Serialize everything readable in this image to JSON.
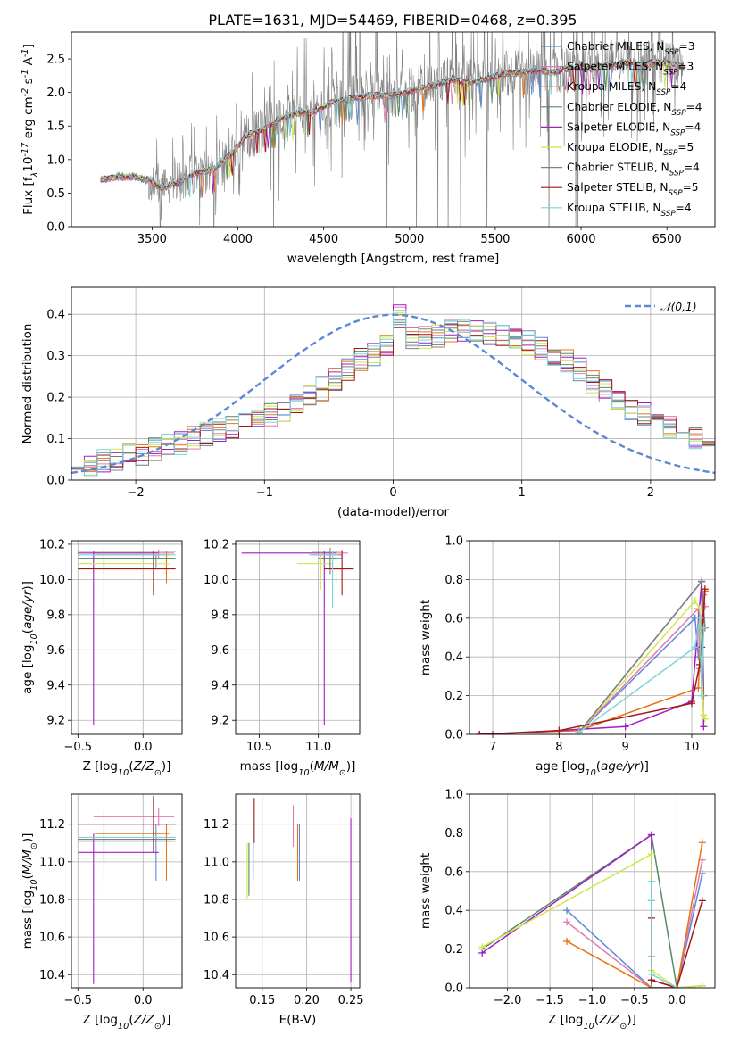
{
  "page": {
    "title": "PLATE=1631, MJD=54469, FIBERID=0468, z=0.395",
    "colors": {
      "Chabrier MILES": "#5b89d6",
      "Salpeter MILES": "#e07ab0",
      "Kroupa MILES": "#e67317",
      "Chabrier ELODIE": "#558a62",
      "Salpeter ELODIE": "#a21fbf",
      "Kroupa ELODIE": "#cfe84a",
      "Chabrier STELIB": "#808080",
      "Salpeter STELIB": "#a51616",
      "Kroupa STELIB": "#7dd3d8"
    }
  },
  "chart_data": [
    {
      "id": "spectrum",
      "type": "line",
      "title": "PLATE=1631, MJD=54469, FIBERID=0468, z=0.395",
      "xlabel": "wavelength [Angstrom, rest frame]",
      "ylabel": "Flux [f$_\\lambda$10$^{-17}$ erg cm$^{-2}$ s$^{-1}$ A$^{-1}$]",
      "xlim": [
        3030,
        6780
      ],
      "ylim": [
        0,
        2.9
      ],
      "xticks": [
        3500,
        4000,
        4500,
        5000,
        5500,
        6000,
        6500
      ],
      "yticks": [
        0.0,
        0.5,
        1.0,
        1.5,
        2.0,
        2.5
      ],
      "grid": false,
      "legend": "top-right",
      "data_range_x": [
        3200,
        6600
      ],
      "continuum_x": [
        3200,
        3300,
        3400,
        3500,
        3550,
        3650,
        3750,
        3850,
        3950,
        4050,
        4150,
        4250,
        4350,
        4450,
        4550,
        4650,
        4750,
        4850,
        4950,
        5050,
        5150,
        5250,
        5350,
        5450,
        5550,
        5650,
        5750,
        5850,
        5950,
        6050,
        6150,
        6250,
        6350,
        6450,
        6550,
        6600
      ],
      "continuum_y": [
        0.7,
        0.75,
        0.74,
        0.68,
        0.58,
        0.65,
        0.8,
        0.85,
        1.05,
        1.35,
        1.45,
        1.6,
        1.7,
        1.72,
        1.85,
        1.9,
        1.95,
        1.95,
        1.98,
        2.05,
        2.1,
        2.2,
        2.15,
        2.2,
        2.28,
        2.3,
        2.33,
        2.3,
        2.38,
        2.35,
        2.4,
        2.45,
        2.42,
        2.45,
        2.4,
        2.38
      ],
      "series": [
        {
          "name": "Chabrier MILES, N$_{SSP}$=3"
        },
        {
          "name": "Salpeter MILES, N$_{SSP}$=3"
        },
        {
          "name": "Kroupa MILES, N$_{SSP}$=4"
        },
        {
          "name": "Chabrier ELODIE, N$_{SSP}$=4"
        },
        {
          "name": "Salpeter ELODIE, N$_{SSP}$=4"
        },
        {
          "name": "Kroupa ELODIE, N$_{SSP}$=5"
        },
        {
          "name": "Chabrier STELIB, N$_{SSP}$=4"
        },
        {
          "name": "Salpeter STELIB, N$_{SSP}$=5"
        },
        {
          "name": "Kroupa STELIB, N$_{SSP}$=4"
        }
      ]
    },
    {
      "id": "residuals",
      "type": "step",
      "xlabel": "(data-model)/error",
      "ylabel": "Normed distribution",
      "xlim": [
        -2.5,
        2.5
      ],
      "ylim": [
        0,
        0.465
      ],
      "xticks": [
        -2,
        -1,
        0,
        1,
        2
      ],
      "yticks": [
        0.0,
        0.1,
        0.2,
        0.3,
        0.4
      ],
      "grid": true,
      "legend": "top-right",
      "gaussian_label": "$\\mathcal{N}(0,1)$",
      "bin_width": 0.1,
      "bin_start": -2.5,
      "base_hist": [
        0.03,
        0.035,
        0.045,
        0.05,
        0.06,
        0.065,
        0.075,
        0.085,
        0.09,
        0.1,
        0.11,
        0.12,
        0.13,
        0.14,
        0.15,
        0.16,
        0.17,
        0.18,
        0.2,
        0.22,
        0.245,
        0.265,
        0.29,
        0.3,
        0.32,
        0.335,
        0.34,
        0.345,
        0.35,
        0.36,
        0.365,
        0.365,
        0.355,
        0.345,
        0.335,
        0.33,
        0.32,
        0.305,
        0.29,
        0.265,
        0.24,
        0.215,
        0.195,
        0.17,
        0.16,
        0.145,
        0.13,
        0.12,
        0.1,
        0.09
      ]
    },
    {
      "id": "age-vs-Z",
      "type": "errorbar",
      "xlabel": "Z [log$_{10}$($Z/Z_\\odot$)]",
      "ylabel": "age  [log$_{10}$($age/yr$)]",
      "xlim": [
        -0.55,
        0.3
      ],
      "ylim": [
        9.12,
        10.22
      ],
      "xticks": [
        -0.5,
        0.0
      ],
      "yticks": [
        9.2,
        9.4,
        9.6,
        9.8,
        10.0,
        10.2
      ],
      "grid": true,
      "points": [
        {
          "model": "Chabrier MILES",
          "x": 0.1,
          "xerr": [
            0.58,
            0.1
          ],
          "y": 10.12,
          "yerr": [
            0.05,
            0.02
          ]
        },
        {
          "model": "Salpeter MILES",
          "x": 0.12,
          "xerr": [
            0.5,
            0.12
          ],
          "y": 10.15,
          "yerr": [
            0.03,
            0.02
          ]
        },
        {
          "model": "Kroupa MILES",
          "x": 0.18,
          "xerr": [
            0.55,
            0.02
          ],
          "y": 10.14,
          "yerr": [
            0.16,
            0.02
          ]
        },
        {
          "model": "Chabrier ELODIE",
          "x": -0.3,
          "xerr": [
            0.2,
            0.55
          ],
          "y": 10.12,
          "yerr": [
            0.05,
            0.02
          ]
        },
        {
          "model": "Salpeter ELODIE",
          "x": -0.38,
          "xerr": [
            0.12,
            0.5
          ],
          "y": 10.15,
          "yerr": [
            0.98,
            0.01
          ]
        },
        {
          "model": "Kroupa ELODIE",
          "x": -0.3,
          "xerr": [
            0.2,
            0.5
          ],
          "y": 10.09,
          "yerr": [
            0.15,
            0.06
          ]
        },
        {
          "model": "Chabrier STELIB",
          "x": -0.3,
          "xerr": [
            0.2,
            0.55
          ],
          "y": 10.16,
          "yerr": [
            0.13,
            0.02
          ]
        },
        {
          "model": "Salpeter STELIB",
          "x": 0.08,
          "xerr": [
            0.58,
            0.17
          ],
          "y": 10.06,
          "yerr": [
            0.15,
            0.1
          ]
        },
        {
          "model": "Kroupa STELIB",
          "x": -0.3,
          "xerr": [
            0.2,
            0.55
          ],
          "y": 10.14,
          "yerr": [
            0.3,
            0.02
          ]
        }
      ]
    },
    {
      "id": "age-vs-mass",
      "type": "errorbar",
      "xlabel": "mass [log$_{10}$($M/M_\\odot$)]",
      "ylabel": "",
      "xlim": [
        10.3,
        11.35
      ],
      "ylim": [
        9.12,
        10.22
      ],
      "xticks": [
        10.5,
        11.0
      ],
      "yticks": [
        9.2,
        9.4,
        9.6,
        9.8,
        10.0,
        10.2
      ],
      "grid": true,
      "points": [
        {
          "model": "Chabrier MILES",
          "x": 11.12,
          "xerr": [
            0.08,
            0.08
          ],
          "y": 10.12,
          "yerr": [
            0.05,
            0.02
          ]
        },
        {
          "model": "Salpeter MILES",
          "x": 11.2,
          "xerr": [
            0.05,
            0.05
          ],
          "y": 10.15,
          "yerr": [
            0.03,
            0.02
          ]
        },
        {
          "model": "Kroupa MILES",
          "x": 11.15,
          "xerr": [
            0.2,
            0.05
          ],
          "y": 10.14,
          "yerr": [
            0.16,
            0.02
          ]
        },
        {
          "model": "Chabrier ELODIE",
          "x": 11.1,
          "xerr": [
            0.1,
            0.05
          ],
          "y": 10.12,
          "yerr": [
            0.05,
            0.02
          ]
        },
        {
          "model": "Salpeter ELODIE",
          "x": 11.05,
          "xerr": [
            0.7,
            0.1
          ],
          "y": 10.15,
          "yerr": [
            0.98,
            0.01
          ]
        },
        {
          "model": "Kroupa ELODIE",
          "x": 11.02,
          "xerr": [
            0.2,
            0.1
          ],
          "y": 10.09,
          "yerr": [
            0.15,
            0.06
          ]
        },
        {
          "model": "Chabrier STELIB",
          "x": 11.1,
          "xerr": [
            0.15,
            0.1
          ],
          "y": 10.16,
          "yerr": [
            0.13,
            0.02
          ]
        },
        {
          "model": "Salpeter STELIB",
          "x": 11.2,
          "xerr": [
            0.15,
            0.1
          ],
          "y": 10.06,
          "yerr": [
            0.15,
            0.1
          ]
        },
        {
          "model": "Kroupa STELIB",
          "x": 11.12,
          "xerr": [
            0.2,
            0.05
          ],
          "y": 10.14,
          "yerr": [
            0.3,
            0.02
          ]
        }
      ]
    },
    {
      "id": "mass-weight-vs-age",
      "type": "line",
      "xlabel": "age  [log$_{10}$($age/yr$)]",
      "ylabel": "mass weight",
      "xlim": [
        6.65,
        10.35
      ],
      "ylim": [
        0,
        1.0
      ],
      "xticks": [
        7,
        8,
        9,
        10
      ],
      "yticks": [
        0.0,
        0.2,
        0.4,
        0.6,
        0.8,
        1.0
      ],
      "grid": true,
      "series": [
        {
          "model": "Chabrier MILES",
          "x": [
            8.3,
            10.05,
            10.1,
            10.15,
            10.18
          ],
          "y": [
            0.01,
            0.6,
            0.4,
            0.58,
            0.55
          ]
        },
        {
          "model": "Salpeter MILES",
          "x": [
            8.3,
            10.1,
            10.12,
            10.18,
            10.2
          ],
          "y": [
            0.01,
            0.65,
            0.34,
            0.72,
            0.66
          ]
        },
        {
          "model": "Kroupa MILES",
          "x": [
            6.8,
            8.3,
            10.1,
            10.15,
            10.2
          ],
          "y": [
            0.0,
            0.02,
            0.24,
            0.6,
            0.74
          ]
        },
        {
          "model": "Chabrier ELODIE",
          "x": [
            8.3,
            10.15,
            10.18
          ],
          "y": [
            0.01,
            0.79,
            0.2
          ]
        },
        {
          "model": "Salpeter ELODIE",
          "x": [
            7.0,
            9.0,
            10.0,
            10.15,
            10.18
          ],
          "y": [
            0.0,
            0.04,
            0.17,
            0.79,
            0.04
          ]
        },
        {
          "model": "Kroupa ELODIE",
          "x": [
            8.3,
            10.05,
            10.12,
            10.18,
            10.2
          ],
          "y": [
            0.01,
            0.69,
            0.65,
            0.1,
            0.08
          ]
        },
        {
          "model": "Chabrier STELIB",
          "x": [
            8.3,
            10.15,
            10.2
          ],
          "y": [
            0.01,
            0.79,
            0.55
          ]
        },
        {
          "model": "Salpeter STELIB",
          "x": [
            6.8,
            8.0,
            10.0,
            10.12,
            10.15,
            10.2
          ],
          "y": [
            0.0,
            0.02,
            0.16,
            0.36,
            0.45,
            0.75
          ]
        },
        {
          "model": "Kroupa STELIB",
          "x": [
            8.3,
            10.05,
            10.12,
            10.15,
            10.18
          ],
          "y": [
            0.01,
            0.45,
            0.6,
            0.2,
            0.55
          ]
        }
      ]
    },
    {
      "id": "mass-vs-Z",
      "type": "errorbar",
      "xlabel": "Z [log$_{10}$($Z/Z_\\odot$)]",
      "ylabel": "mass [log$_{10}$($M/M_\\odot$)]",
      "xlim": [
        -0.55,
        0.3
      ],
      "ylim": [
        10.33,
        11.36
      ],
      "xticks": [
        -0.5,
        0.0
      ],
      "yticks": [
        10.4,
        10.6,
        10.8,
        11.0,
        11.2
      ],
      "grid": true,
      "points": [
        {
          "model": "Chabrier MILES",
          "x": 0.1,
          "xerr": [
            0.58,
            0.1
          ],
          "y": 11.12,
          "yerr": [
            0.22,
            0.08
          ]
        },
        {
          "model": "Salpeter MILES",
          "x": 0.12,
          "xerr": [
            0.5,
            0.12
          ],
          "y": 11.24,
          "yerr": [
            0.05,
            0.05
          ]
        },
        {
          "model": "Kroupa MILES",
          "x": 0.18,
          "xerr": [
            0.55,
            0.02
          ],
          "y": 11.15,
          "yerr": [
            0.25,
            0.05
          ]
        },
        {
          "model": "Chabrier ELODIE",
          "x": -0.3,
          "xerr": [
            0.2,
            0.55
          ],
          "y": 11.11,
          "yerr": [
            0.1,
            0.05
          ]
        },
        {
          "model": "Salpeter ELODIE",
          "x": -0.38,
          "xerr": [
            0.12,
            0.5
          ],
          "y": 11.05,
          "yerr": [
            0.7,
            0.1
          ]
        },
        {
          "model": "Kroupa ELODIE",
          "x": -0.3,
          "xerr": [
            0.2,
            0.5
          ],
          "y": 11.02,
          "yerr": [
            0.2,
            0.1
          ]
        },
        {
          "model": "Chabrier STELIB",
          "x": -0.3,
          "xerr": [
            0.2,
            0.55
          ],
          "y": 11.12,
          "yerr": [
            0.12,
            0.15
          ]
        },
        {
          "model": "Salpeter STELIB",
          "x": 0.08,
          "xerr": [
            0.58,
            0.17
          ],
          "y": 11.2,
          "yerr": [
            0.15,
            0.15
          ]
        },
        {
          "model": "Kroupa STELIB",
          "x": -0.3,
          "xerr": [
            0.2,
            0.55
          ],
          "y": 11.13,
          "yerr": [
            0.2,
            0.07
          ]
        }
      ]
    },
    {
      "id": "mass-vs-EBV",
      "type": "errorbar",
      "xlabel": "E(B-V)",
      "ylabel": "",
      "xlim": [
        0.12,
        0.26
      ],
      "ylim": [
        10.33,
        11.36
      ],
      "xticks": [
        0.15,
        0.2,
        0.25
      ],
      "yticks": [
        10.4,
        10.6,
        10.8,
        11.0,
        11.2
      ],
      "grid": true,
      "points": [
        {
          "model": "Chabrier MILES",
          "x": 0.192,
          "y": 11.05,
          "yerr": [
            0.15,
            0.15
          ]
        },
        {
          "model": "Salpeter MILES",
          "x": 0.185,
          "y": 11.18,
          "yerr": [
            0.1,
            0.12
          ]
        },
        {
          "model": "Kroupa MILES",
          "x": 0.19,
          "y": 11.05,
          "yerr": [
            0.15,
            0.15
          ]
        },
        {
          "model": "Chabrier ELODIE",
          "x": 0.135,
          "y": 11.0,
          "yerr": [
            0.18,
            0.1
          ]
        },
        {
          "model": "Salpeter ELODIE",
          "x": 0.25,
          "y": 10.8,
          "yerr": [
            0.44,
            0.43
          ]
        },
        {
          "model": "Kroupa ELODIE",
          "x": 0.133,
          "y": 10.95,
          "yerr": [
            0.15,
            0.15
          ]
        },
        {
          "model": "Chabrier STELIB",
          "x": 0.14,
          "y": 11.1,
          "yerr": [
            0.15,
            0.15
          ]
        },
        {
          "model": "Salpeter STELIB",
          "x": 0.141,
          "y": 11.2,
          "yerr": [
            0.1,
            0.14
          ]
        },
        {
          "model": "Kroupa STELIB",
          "x": 0.14,
          "y": 11.05,
          "yerr": [
            0.15,
            0.2
          ]
        }
      ]
    },
    {
      "id": "mass-weight-vs-Z",
      "type": "line",
      "xlabel": "Z [log$_{10}$($Z/Z_\\odot$)]",
      "ylabel": "mass weight",
      "xlim": [
        -2.45,
        0.45
      ],
      "ylim": [
        0,
        1.0
      ],
      "xticks": [
        -2.0,
        -1.5,
        -1.0,
        -0.5,
        0.0
      ],
      "yticks": [
        0.0,
        0.2,
        0.4,
        0.6,
        0.8,
        1.0
      ],
      "grid": true,
      "series": [
        {
          "model": "Chabrier MILES",
          "x": [
            -1.3,
            -0.3,
            0.0,
            0.3
          ],
          "y": [
            0.4,
            0.0,
            0.0,
            0.59
          ]
        },
        {
          "model": "Salpeter MILES",
          "x": [
            -1.3,
            -0.3,
            0.0,
            0.3
          ],
          "y": [
            0.34,
            0.0,
            0.0,
            0.66
          ]
        },
        {
          "model": "Kroupa MILES",
          "x": [
            -1.3,
            -0.3,
            0.0,
            0.3
          ],
          "y": [
            0.24,
            0.0,
            0.0,
            0.75
          ]
        },
        {
          "model": "Chabrier ELODIE",
          "x": [
            -2.3,
            -0.3,
            0.0,
            0.3
          ],
          "y": [
            0.2,
            0.79,
            0.0,
            0.01
          ]
        },
        {
          "model": "Salpeter ELODIE",
          "x": [
            -2.3,
            -0.3,
            -0.3,
            0.0
          ],
          "y": [
            0.18,
            0.79,
            0.04,
            0.0
          ]
        },
        {
          "model": "Kroupa ELODIE",
          "x": [
            -2.3,
            -0.3,
            -0.3,
            0.0,
            0.3
          ],
          "y": [
            0.21,
            0.69,
            0.09,
            0.0,
            0.01
          ]
        },
        {
          "model": "Chabrier STELIB",
          "x": [
            -0.3,
            -0.3,
            -0.3,
            0.0
          ],
          "y": [
            0.45,
            0.55,
            0.0,
            0.0
          ]
        },
        {
          "model": "Salpeter STELIB",
          "x": [
            -0.3,
            -0.3,
            -0.3,
            0.0,
            0.3
          ],
          "y": [
            0.36,
            0.16,
            0.04,
            0.0,
            0.45
          ]
        },
        {
          "model": "Kroupa STELIB",
          "x": [
            -0.3,
            -0.3,
            -0.3,
            0.0
          ],
          "y": [
            0.55,
            0.45,
            0.07,
            0.0
          ]
        }
      ]
    }
  ]
}
